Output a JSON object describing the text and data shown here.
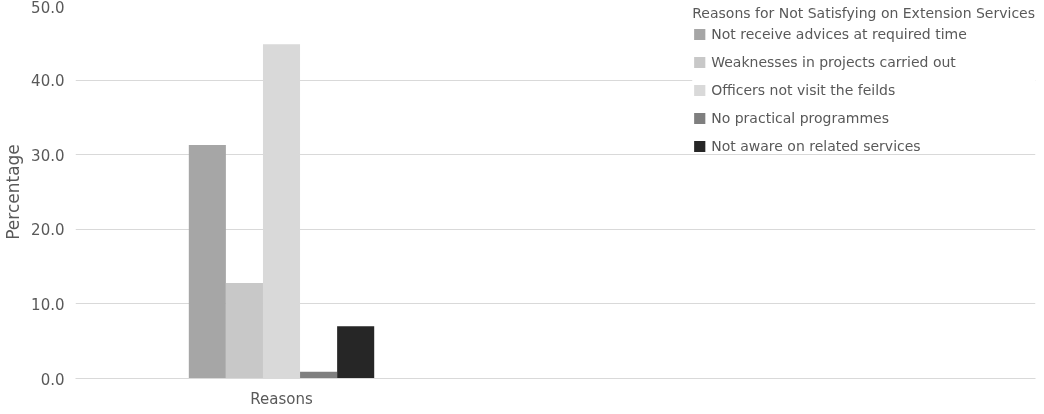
{
  "chart_data": {
    "type": "bar",
    "ylabel": "Percentage",
    "legend_title": "Reasons for Not Satisfying on Extension Services",
    "categories": [
      "Reasons"
    ],
    "series": [
      {
        "name": "Not receive advices at required time",
        "color": "#a6a6a6",
        "values": [
          31.3
        ]
      },
      {
        "name": "Weaknesses in projects carried out",
        "color": "#c8c8c8",
        "values": [
          12.8
        ]
      },
      {
        "name": "Officers not visit the feilds",
        "color": "#d9d9d9",
        "values": [
          44.8
        ]
      },
      {
        "name": "No practical programmes",
        "color": "#7f7f7f",
        "values": [
          0.9
        ]
      },
      {
        "name": "Not aware on related services",
        "color": "#262626",
        "values": [
          7.0
        ]
      }
    ],
    "ylim": [
      0,
      50
    ],
    "yticks": [
      {
        "value": 0,
        "label": "0.0"
      },
      {
        "value": 10,
        "label": "10.0"
      },
      {
        "value": 20,
        "label": "20.0"
      },
      {
        "value": 30,
        "label": "30.0"
      },
      {
        "value": 40,
        "label": "40.0"
      },
      {
        "value": 50,
        "label": "50.0"
      }
    ],
    "grid": "y",
    "legend": "right"
  }
}
